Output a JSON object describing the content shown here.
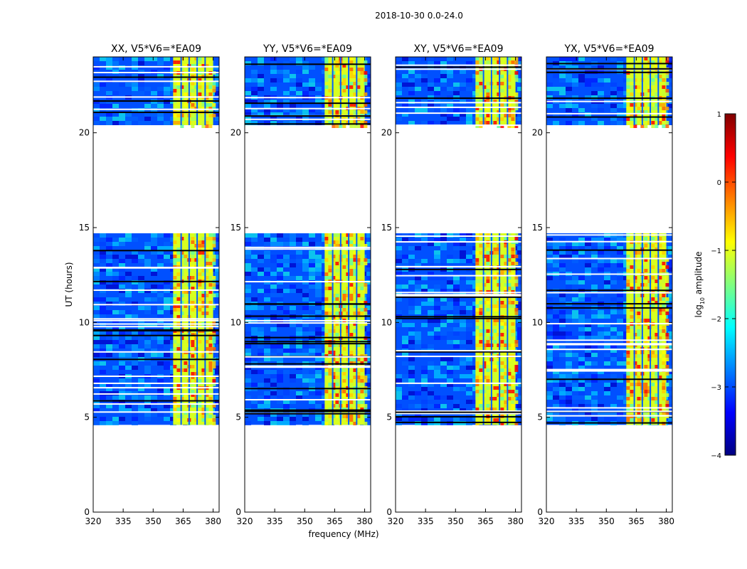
{
  "chart_data": {
    "type": "heatmap",
    "suptitle": "2018-10-30 0.0-24.0",
    "xlabel": "frequency (MHz)",
    "ylabel": "UT (hours)",
    "xlim": [
      320,
      383
    ],
    "ylim": [
      0,
      24
    ],
    "xticks": [
      320,
      335,
      350,
      365,
      380
    ],
    "yticks": [
      0,
      5,
      10,
      15,
      20
    ],
    "panels": [
      {
        "title": "XX, V5*V6=*EA09"
      },
      {
        "title": "YY, V5*V6=*EA09"
      },
      {
        "title": "XY, V5*V6=*EA09"
      },
      {
        "title": "YX, V5*V6=*EA09"
      }
    ],
    "observed_time_ranges": [
      [
        4.6,
        14.7
      ],
      [
        20.4,
        24.0
      ]
    ],
    "rfi_band_mhz": [
      360,
      380
    ],
    "colorbar": {
      "label": "log10 amplitude",
      "label_base": "log",
      "label_sub": "10",
      "label_rest": " amplitude",
      "range": [
        -4,
        1
      ],
      "ticks": [
        "1",
        "0",
        "−1",
        "−2",
        "−3",
        "−4"
      ],
      "colormap": [
        "#000080",
        "#0000ff",
        "#0080ff",
        "#00ffff",
        "#80ff80",
        "#ffff00",
        "#ff8000",
        "#ff0000",
        "#800000"
      ]
    }
  }
}
